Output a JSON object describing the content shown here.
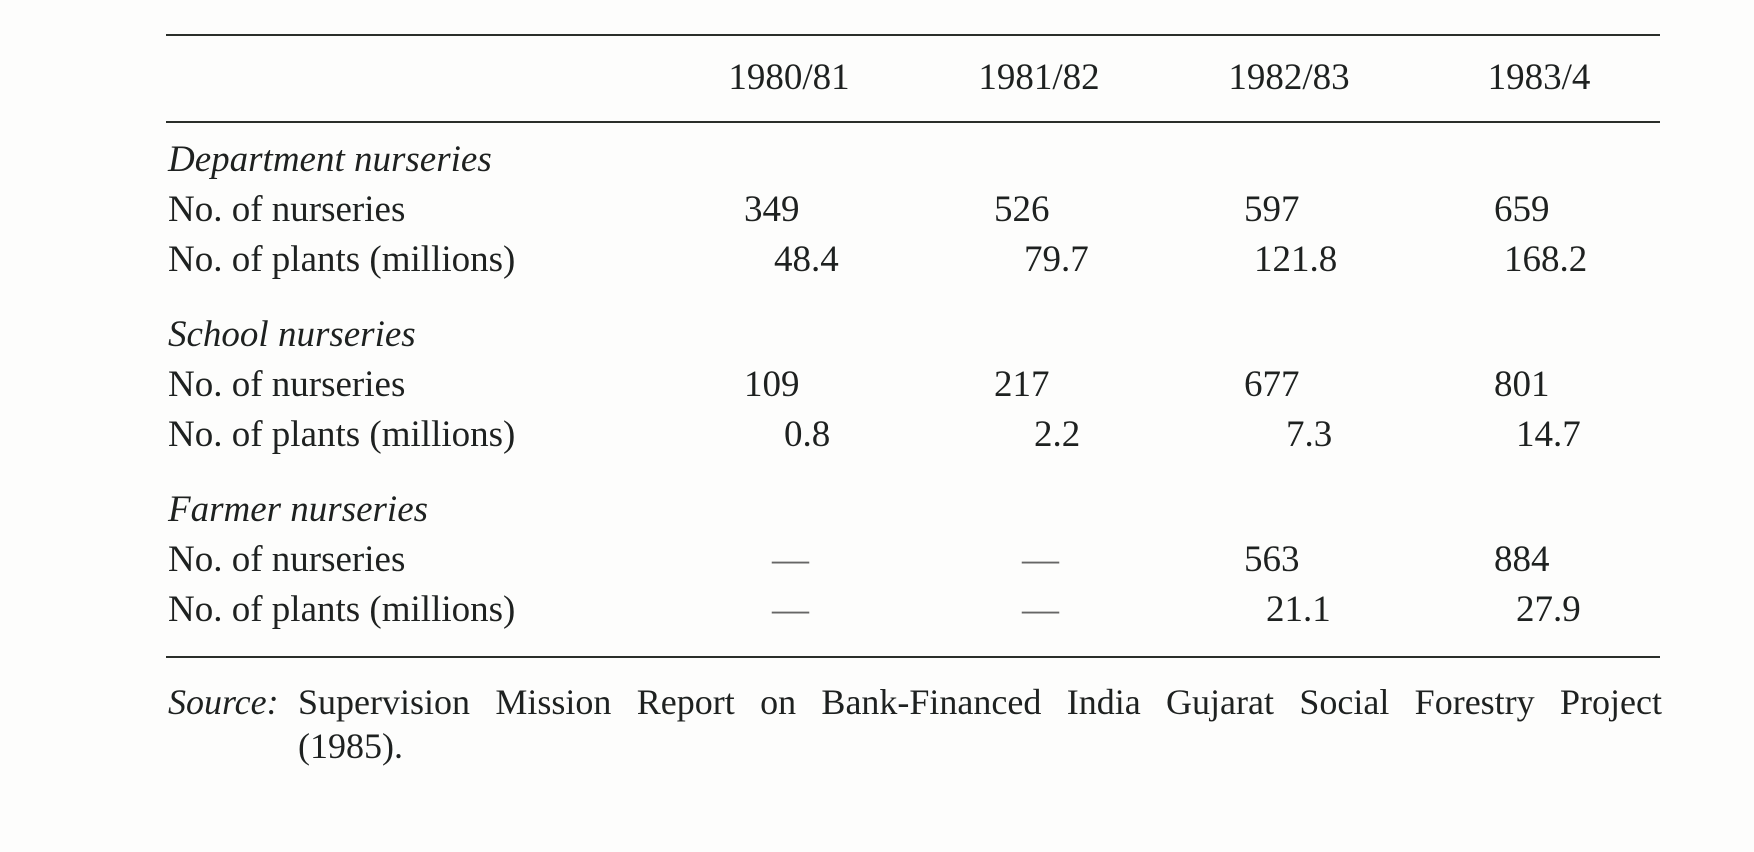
{
  "table": {
    "years": [
      "1980/81",
      "1981/82",
      "1982/83",
      "1983/4"
    ],
    "groups": [
      {
        "title": "Department nurseries",
        "rows": [
          {
            "label": "No. of nurseries",
            "values": [
              "349",
              "526",
              "597",
              "659"
            ]
          },
          {
            "label": "No. of plants (millions)",
            "values": [
              "48.4",
              "79.7",
              "121.8",
              "168.2"
            ]
          }
        ]
      },
      {
        "title": "School nurseries",
        "rows": [
          {
            "label": "No. of nurseries",
            "values": [
              "109",
              "217",
              "677",
              "801"
            ]
          },
          {
            "label": "No. of plants (millions)",
            "values": [
              "0.8",
              "2.2",
              "7.3",
              "14.7"
            ]
          }
        ]
      },
      {
        "title": "Farmer nurseries",
        "rows": [
          {
            "label": "No. of nurseries",
            "values": [
              "—",
              "—",
              "563",
              "884"
            ]
          },
          {
            "label": "No. of plants (millions)",
            "values": [
              "—",
              "—",
              "21.1",
              "27.9"
            ]
          }
        ]
      }
    ]
  },
  "source": {
    "label": "Source:",
    "text": "Supervision Mission Report on Bank-Financed India Gujarat Social Forestry Project",
    "text_line2": "(1985)."
  }
}
